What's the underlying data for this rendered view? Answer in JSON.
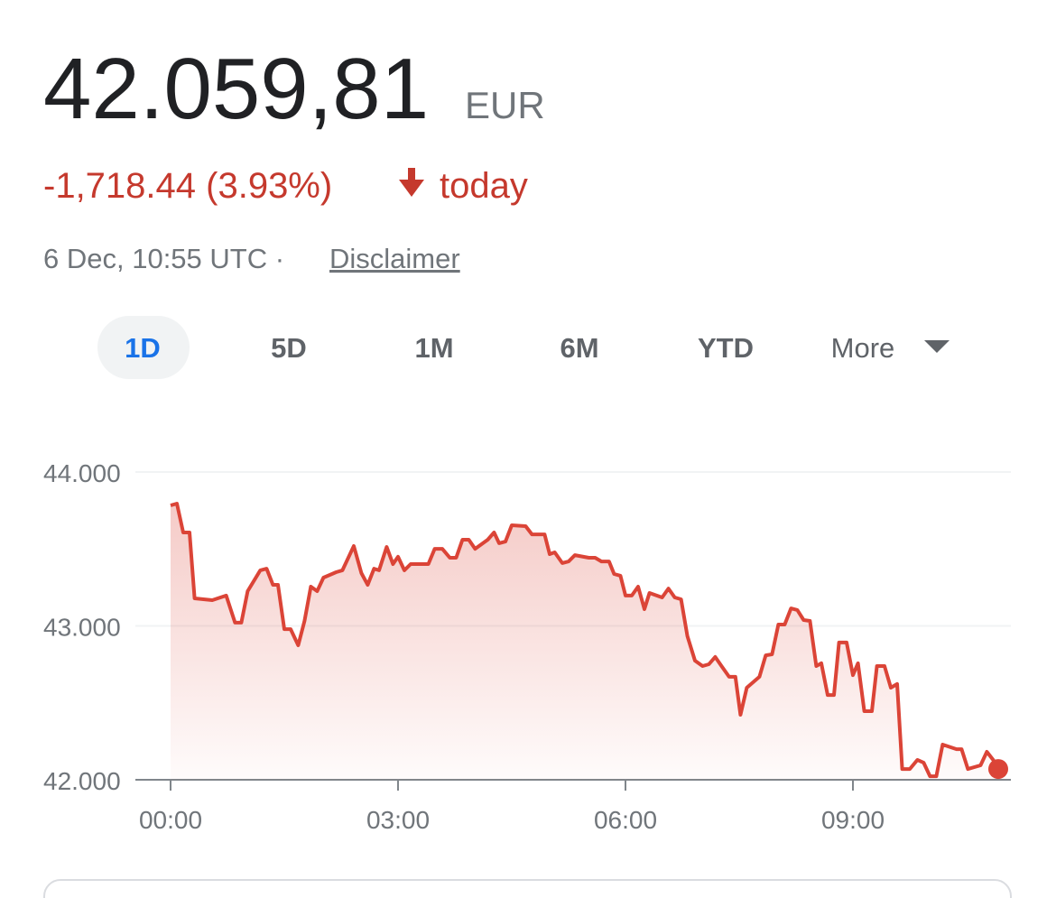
{
  "header": {
    "price": "42.059,81",
    "currency": "EUR",
    "change": "-1,718.44 (3.93%)",
    "change_period": "today",
    "timestamp": "6 Dec, 10:55 UTC ·",
    "disclaimer": "Disclaimer"
  },
  "tabs": [
    "1D",
    "5D",
    "1M",
    "6M",
    "YTD",
    "More"
  ],
  "chart_data": {
    "type": "line",
    "x": [
      0,
      5,
      10,
      15,
      19,
      33,
      44,
      51,
      56,
      61,
      71,
      76,
      81,
      85,
      90,
      95,
      101,
      106,
      111,
      116,
      121,
      131,
      136,
      145,
      151,
      156,
      161,
      165,
      171,
      176,
      180,
      185,
      190,
      204,
      209,
      215,
      221,
      226,
      231,
      236,
      241,
      251,
      256,
      260,
      265,
      270,
      281,
      286,
      296,
      300,
      304,
      310,
      315,
      320,
      331,
      336,
      341,
      347,
      351,
      356,
      360,
      365,
      370,
      375,
      379,
      389,
      394,
      399,
      404,
      409,
      415,
      421,
      426,
      431,
      436,
      442,
      447,
      451,
      456,
      466,
      471,
      476,
      481,
      486,
      491,
      496,
      501,
      506,
      511,
      515,
      520,
      525,
      529,
      535,
      540,
      544,
      549,
      555,
      559,
      565,
      570,
      575,
      579,
      585,
      591,
      596,
      601,
      606,
      611,
      622,
      626,
      631,
      641,
      646,
      651,
      655
    ],
    "series": [
      {
        "name": "EUR",
        "color": "#db4437",
        "values": [
          43783,
          43795,
          43607,
          43607,
          43179,
          43167,
          43197,
          43021,
          43021,
          43226,
          43361,
          43372,
          43267,
          43267,
          42979,
          42979,
          42874,
          43032,
          43255,
          43226,
          43314,
          43349,
          43361,
          43519,
          43343,
          43267,
          43372,
          43361,
          43513,
          43402,
          43449,
          43361,
          43402,
          43402,
          43501,
          43501,
          43443,
          43443,
          43560,
          43560,
          43501,
          43560,
          43607,
          43537,
          43548,
          43654,
          43648,
          43595,
          43595,
          43466,
          43478,
          43408,
          43419,
          43460,
          43443,
          43443,
          43419,
          43419,
          43337,
          43326,
          43197,
          43197,
          43255,
          43109,
          43214,
          43185,
          43243,
          43185,
          43173,
          42933,
          42774,
          42739,
          42751,
          42798,
          42739,
          42669,
          42669,
          42422,
          42598,
          42669,
          42809,
          42815,
          43009,
          43009,
          43114,
          43103,
          43038,
          43032,
          42739,
          42757,
          42551,
          42551,
          42892,
          42892,
          42680,
          42757,
          42446,
          42446,
          42739,
          42739,
          42598,
          42622,
          42070,
          42070,
          42129,
          42111,
          42023,
          42023,
          42229,
          42199,
          42199,
          42070,
          42094,
          42182,
          42129,
          42070
        ]
      }
    ],
    "xlim": [
      0,
      665
    ],
    "xticks": [
      {
        "value": 0,
        "label": "00:00"
      },
      {
        "value": 180,
        "label": "03:00"
      },
      {
        "value": 360,
        "label": "06:00"
      },
      {
        "value": 540,
        "label": "09:00"
      }
    ],
    "ylim": [
      42000,
      44000
    ],
    "yticks": [
      {
        "value": 42000,
        "label": "42.000"
      },
      {
        "value": 43000,
        "label": "43.000"
      },
      {
        "value": 44000,
        "label": "44.000"
      }
    ],
    "grid": true
  }
}
